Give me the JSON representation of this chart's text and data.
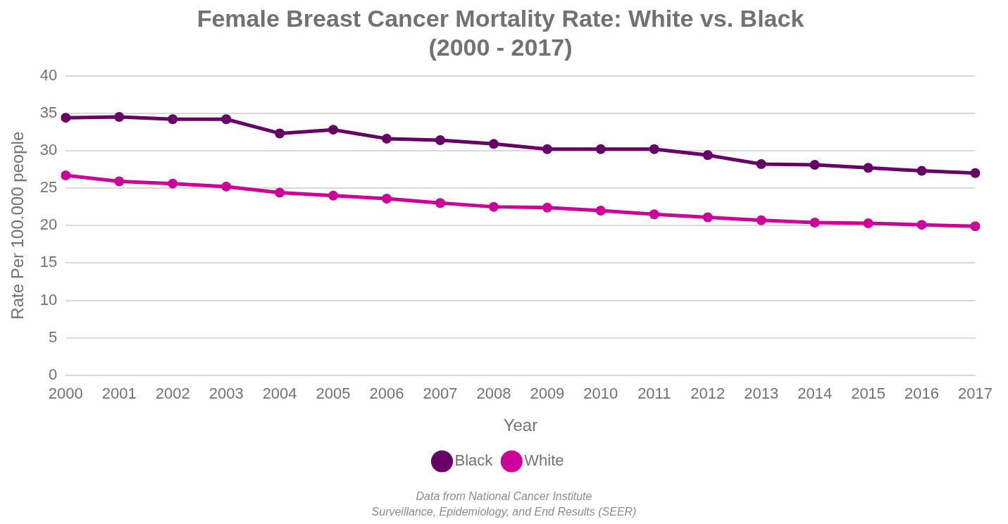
{
  "chart_data": {
    "type": "line",
    "title": "Female Breast Cancer Mortality Rate: White vs. Black\n(2000 - 2017)",
    "xlabel": "Year",
    "ylabel": "Rate Per 100.000 people",
    "categories": [
      "2000",
      "2001",
      "2002",
      "2003",
      "2004",
      "2005",
      "2006",
      "2007",
      "2008",
      "2009",
      "2010",
      "2011",
      "2012",
      "2013",
      "2014",
      "2015",
      "2016",
      "2017"
    ],
    "series": [
      {
        "name": "Black",
        "color": "#660066",
        "values": [
          34.4,
          34.5,
          34.2,
          34.2,
          32.3,
          32.8,
          31.6,
          31.4,
          30.9,
          30.2,
          30.2,
          30.2,
          29.4,
          28.2,
          28.1,
          27.7,
          27.3,
          27.0
        ]
      },
      {
        "name": "White",
        "color": "#cc0099",
        "values": [
          26.7,
          25.9,
          25.6,
          25.2,
          24.4,
          24.0,
          23.6,
          23.0,
          22.5,
          22.4,
          22.0,
          21.5,
          21.1,
          20.7,
          20.4,
          20.3,
          20.1,
          19.9
        ]
      }
    ],
    "ylim": [
      0,
      40
    ],
    "yticks": [
      0,
      5,
      10,
      15,
      20,
      25,
      30,
      35,
      40
    ],
    "grid": "y",
    "legend": "bottom",
    "marker": "circle",
    "line_style": "solid",
    "annotations": [
      "Data from National Cancer Institute",
      "Surveillance, Epidemiology, and End Results (SEER)"
    ]
  }
}
